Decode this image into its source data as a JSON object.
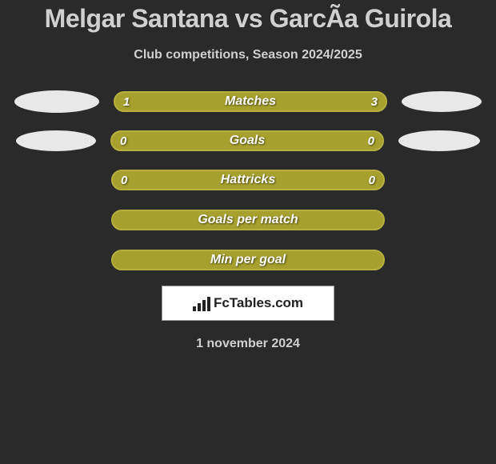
{
  "title": "Melgar Santana vs GarcÃ­a Guirola",
  "subtitle": "Club competitions, Season 2024/2025",
  "colors": {
    "olive": "#a8a02e",
    "olive_border": "#b8b03e",
    "background": "#2a2a2a",
    "text_light": "#d0d0d0"
  },
  "stats": [
    {
      "label": "Matches",
      "left_value": "1",
      "right_value": "3",
      "left_pct": 25,
      "has_left_avatar": true,
      "has_right_avatar": true,
      "left_avatar_class": "avatar-left-1",
      "right_avatar_class": "avatar-right-1"
    },
    {
      "label": "Goals",
      "left_value": "0",
      "right_value": "0",
      "left_pct": 0,
      "has_left_avatar": true,
      "has_right_avatar": true,
      "left_avatar_class": "avatar-left-2",
      "right_avatar_class": "avatar-right-2"
    },
    {
      "label": "Hattricks",
      "left_value": "0",
      "right_value": "0",
      "left_pct": 0,
      "has_left_avatar": false,
      "has_right_avatar": false
    },
    {
      "label": "Goals per match",
      "left_value": "",
      "right_value": "",
      "left_pct": 0,
      "has_left_avatar": false,
      "has_right_avatar": false
    },
    {
      "label": "Min per goal",
      "left_value": "",
      "right_value": "",
      "left_pct": 0,
      "has_left_avatar": false,
      "has_right_avatar": false
    }
  ],
  "logo_text": "FcTables.com",
  "date_text": "1 november 2024"
}
